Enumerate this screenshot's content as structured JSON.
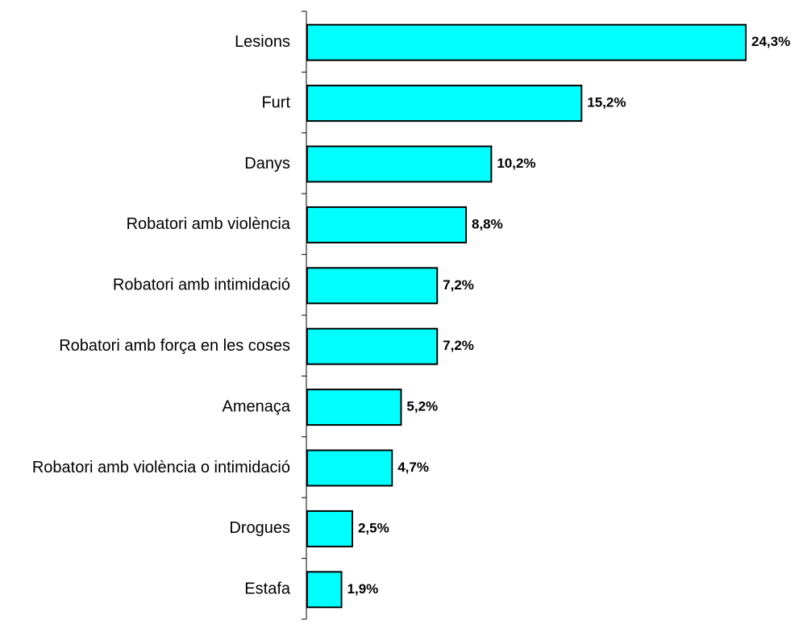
{
  "chart_data": {
    "type": "bar",
    "orientation": "horizontal",
    "title": "",
    "xlabel": "",
    "ylabel": "",
    "categories": [
      "Lesions",
      "Furt",
      "Danys",
      "Robatori amb violència",
      "Robatori amb intimidació",
      "Robatori amb força en les coses",
      "Amenaça",
      "Robatori amb violència o intimidació",
      "Drogues",
      "Estafa"
    ],
    "values": [
      24.3,
      15.2,
      10.2,
      8.8,
      7.2,
      7.2,
      5.2,
      4.7,
      2.5,
      1.9
    ],
    "value_labels": [
      "24,3%",
      "15,2%",
      "10,2%",
      "8,8%",
      "7,2%",
      "7,2%",
      "5,2%",
      "4,7%",
      "2,5%",
      "1,9%"
    ],
    "xlim": [
      0,
      24.3
    ],
    "grid": false,
    "legend": "none",
    "colors": {
      "bar_fill": "#00FFFF",
      "bar_stroke": "#000000"
    }
  }
}
